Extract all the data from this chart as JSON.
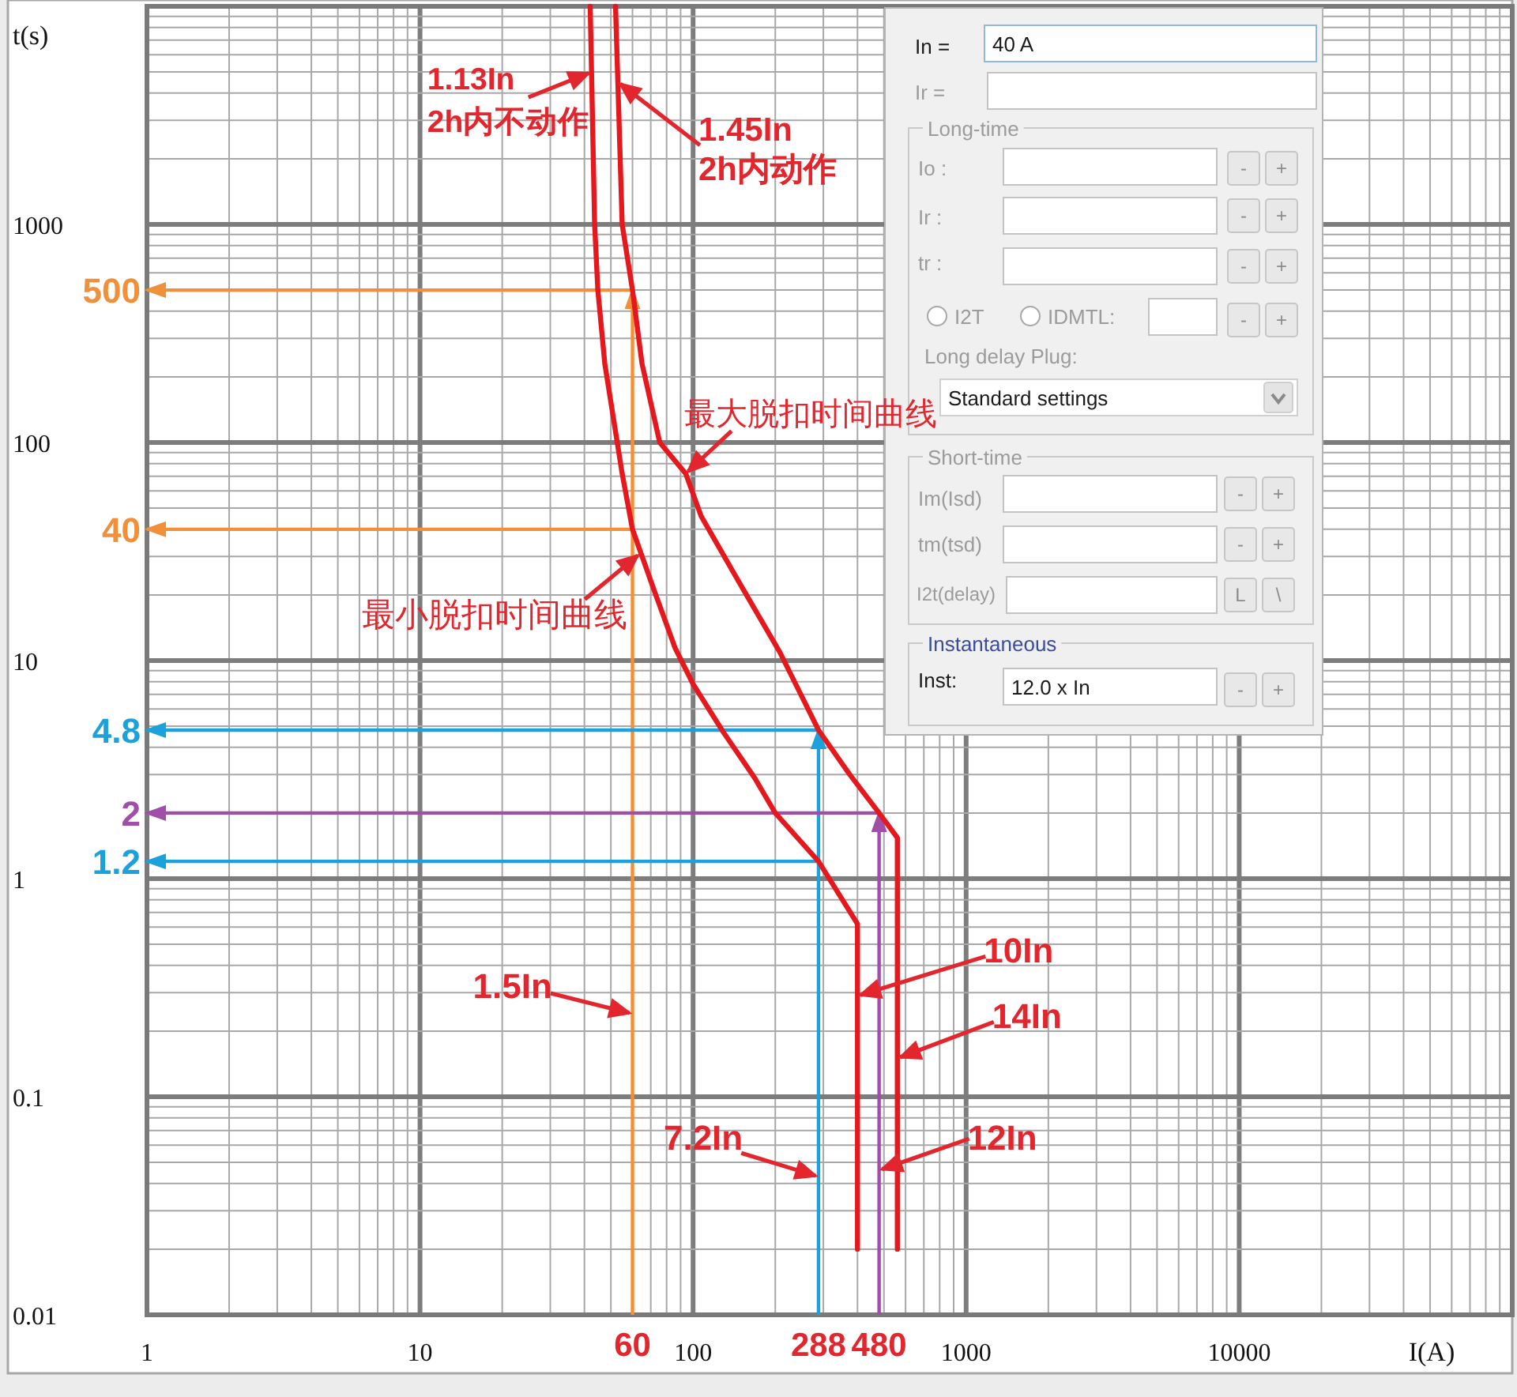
{
  "chart_data": [
    {
      "type": "line",
      "xlabel": "I(A)",
      "ylabel": "t(s)",
      "log": "xy",
      "xlim": [
        1,
        100000
      ],
      "ylim": [
        0.01,
        10000
      ],
      "xticks": [
        1,
        10,
        100,
        1000,
        10000
      ],
      "yticks": [
        0.01,
        0.1,
        1,
        10,
        100,
        1000
      ],
      "grid": true,
      "series": [
        {
          "color": "#f0903a",
          "x": [
            60,
            60
          ],
          "values": [
            0.01,
            500
          ]
        },
        {
          "color": "#f0903a",
          "x": [
            60,
            1
          ],
          "values": [
            500,
            500
          ],
          "value_labels": [
            null,
            "500"
          ]
        },
        {
          "color": "#f0903a",
          "x": [
            60,
            1
          ],
          "values": [
            40,
            40
          ],
          "value_labels": [
            null,
            "40"
          ]
        },
        {
          "color": "#1ba2dc",
          "x": [
            288,
            288
          ],
          "values": [
            0.01,
            4.8
          ]
        },
        {
          "color": "#1ba2dc",
          "x": [
            288,
            1
          ],
          "values": [
            4.8,
            4.8
          ],
          "value_labels": [
            null,
            "4.8"
          ]
        },
        {
          "color": "#1ba2dc",
          "x": [
            288,
            1
          ],
          "values": [
            1.2,
            1.2
          ],
          "value_labels": [
            null,
            "1.2"
          ]
        },
        {
          "color": "#a04fa8",
          "x": [
            480,
            480
          ],
          "values": [
            0.01,
            2
          ]
        },
        {
          "color": "#a04fa8",
          "x": [
            480,
            1
          ],
          "values": [
            2,
            2
          ],
          "value_labels": [
            null,
            "2"
          ]
        },
        {
          "color": "#e5181d",
          "x": [
            42,
            43.6,
            44.8,
            47.5,
            55,
            60,
            72,
            86,
            100,
            129,
            168,
            200,
            288,
            400,
            400
          ],
          "values": [
            10000,
            1000,
            500,
            230,
            72,
            40,
            21,
            11.4,
            7.8,
            4.7,
            2.9,
            2.0,
            1.2,
            0.62,
            0.02
          ]
        },
        {
          "color": "#e5181d",
          "x": [
            52,
            55,
            60,
            65,
            75.5,
            94,
            107,
            147,
            208,
            288,
            375,
            480,
            560,
            560
          ],
          "values": [
            10000,
            1000,
            500,
            230,
            100,
            72,
            46,
            23,
            10.9,
            4.8,
            3.0,
            2,
            1.54,
            0.02
          ]
        }
      ],
      "annotations": [
        {
          "text": "1.13In\n2h内不动作",
          "x": 42.5,
          "y": 5000
        },
        {
          "text": "1.45In\n2h内动作",
          "x": 53,
          "y": 4500
        },
        {
          "text": "最大脱扣时间曲线",
          "x": 94,
          "y": 72
        },
        {
          "text": "最小脱扣时间曲线",
          "x": 64,
          "y": 31
        },
        {
          "text": "1.5In",
          "x": 60,
          "y": 0.24
        },
        {
          "text": "10In",
          "x": 400,
          "y": 0.29
        },
        {
          "text": "14In",
          "x": 560,
          "y": 0.15
        },
        {
          "text": "7.2In",
          "x": 288,
          "y": 0.043
        },
        {
          "text": "12In",
          "x": 480,
          "y": 0.046
        },
        {
          "text": "60",
          "x": 60,
          "y": 0.01
        },
        {
          "text": "288",
          "x": 288,
          "y": 0.01
        },
        {
          "text": "480",
          "x": 480,
          "y": 0.01
        }
      ]
    },
    {
      "type": "other",
      "annotations": [
        "In =",
        "40 A",
        "Ir =",
        "Long-time",
        "Io :",
        "-",
        "+",
        "Ir :",
        "-",
        "+",
        "tr :",
        "-",
        "+",
        "I2T",
        "IDMTL:",
        "-",
        "+",
        "Long delay Plug:",
        "Standard settings",
        "Short-time",
        "Im(Isd)",
        "-",
        "+",
        "tm(tsd)",
        "-",
        "+",
        "I2t(delay)",
        "L",
        "\\",
        "Instantaneous",
        "Inst:",
        "12.0 x In",
        "-",
        "+"
      ]
    }
  ]
}
